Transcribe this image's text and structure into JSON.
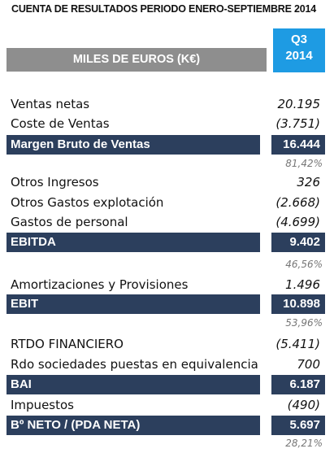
{
  "title": "CUENTA DE RESULTADOS PERIODO ENERO-SEPTIEMBRE 2014",
  "header": {
    "units": "MILES DE EUROS (K€)",
    "period_line1": "Q3",
    "period_line2": "2014"
  },
  "rows": [
    {
      "label": "Ventas netas",
      "value": "20.195"
    },
    {
      "label": "Coste de Ventas",
      "value": "(3.751)"
    },
    {
      "label": "Margen Bruto de Ventas",
      "value": "16.444",
      "pct": "81,42%"
    },
    {
      "label": "Otros Ingresos",
      "value": "326"
    },
    {
      "label": "Otros Gastos explotación",
      "value": "(2.668)"
    },
    {
      "label": "Gastos de personal",
      "value": "(4.699)"
    },
    {
      "label": "EBITDA",
      "value": "9.402",
      "pct": "46,56%"
    },
    {
      "label": "Amortizaciones y Provisiones",
      "value": "1.496"
    },
    {
      "label": "EBIT",
      "value": "10.898",
      "pct": "53,96%"
    },
    {
      "label": "RTDO FINANCIERO",
      "value": "(5.411)"
    },
    {
      "label": "Rdo sociedades puestas en equivalencia",
      "value": "700"
    },
    {
      "label": "BAI",
      "value": "6.187"
    },
    {
      "label": "Impuestos",
      "value": "(490)"
    },
    {
      "label": "Bº NETO / (PDA NETA)",
      "value": "5.697",
      "pct": "28,21%"
    }
  ],
  "colors": {
    "dark_row": "#2c3f5d",
    "header_grey": "#8e8e8e",
    "period_blue": "#1e9be3"
  }
}
